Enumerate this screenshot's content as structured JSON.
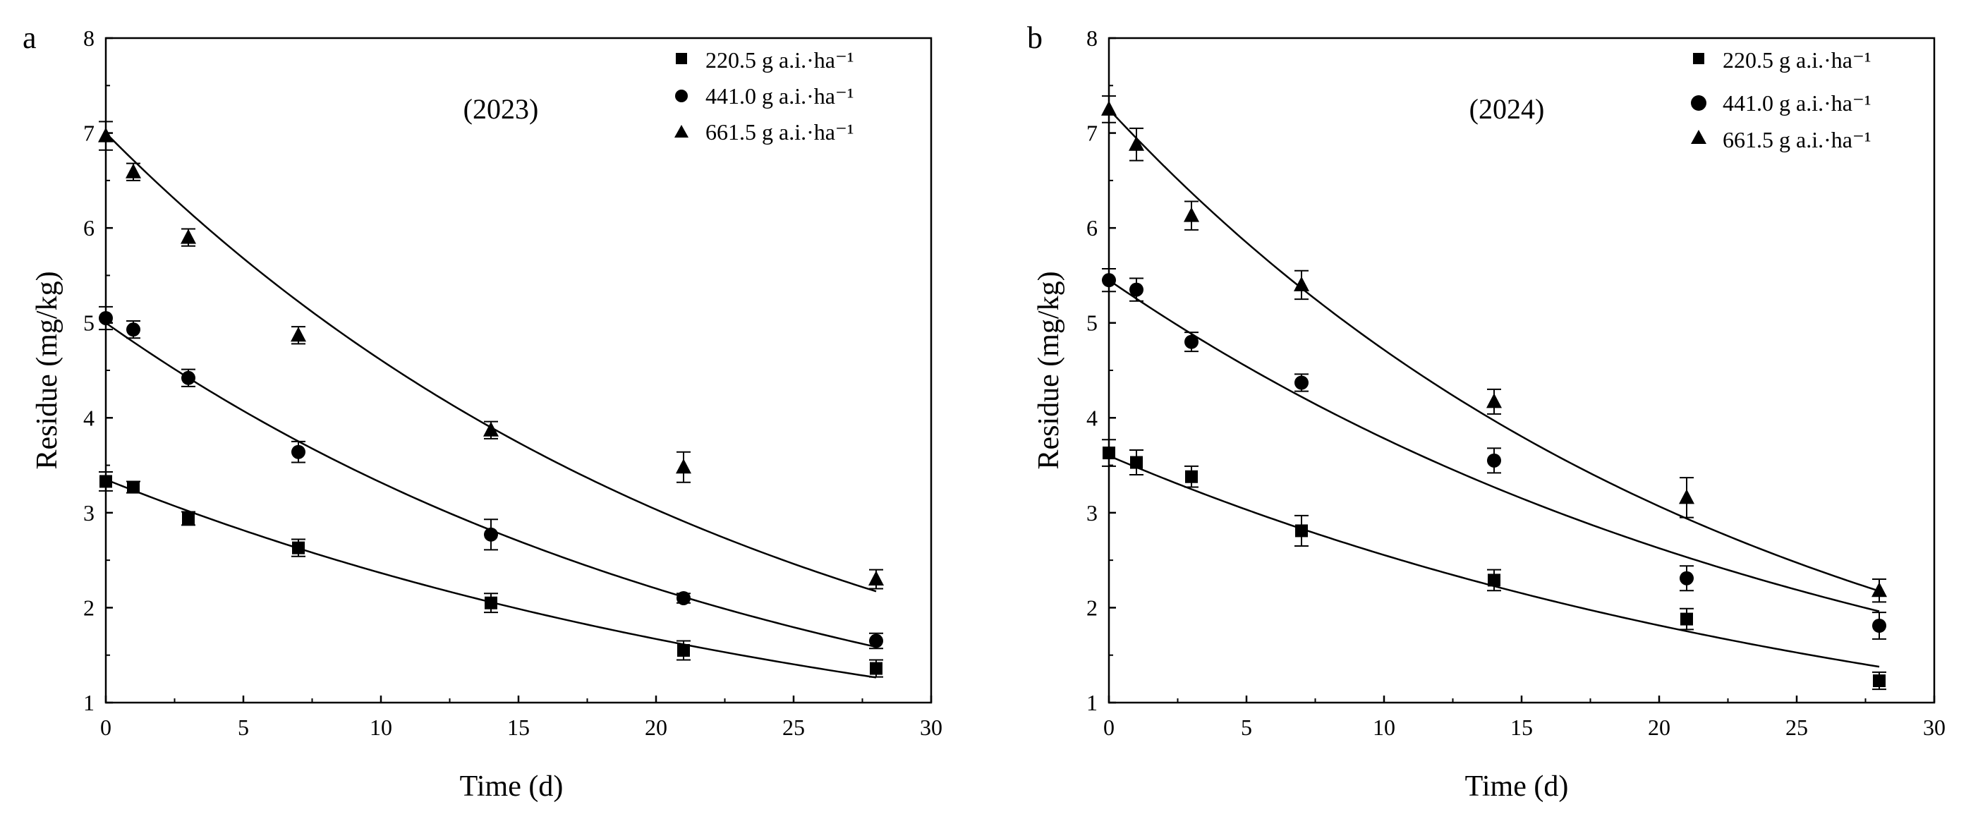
{
  "chart_data": [
    {
      "type": "scatter",
      "panel_label": "a",
      "title": "(2023)",
      "xlabel": "Time (d)",
      "ylabel": "Residue (mg/kg)",
      "xlim": [
        0,
        30
      ],
      "ylim": [
        1,
        8
      ],
      "x_ticks": [
        0,
        5,
        10,
        15,
        20,
        25,
        30
      ],
      "y_ticks": [
        1,
        2,
        3,
        4,
        5,
        6,
        7,
        8
      ],
      "x_tick_labels": [
        "0",
        "5",
        "10",
        "15",
        "20",
        "25",
        "30"
      ],
      "y_tick_labels": [
        "1",
        "2",
        "3",
        "4",
        "5",
        "6",
        "7",
        "8"
      ],
      "legend_position": "top-right",
      "x": [
        0,
        1,
        3,
        7,
        14,
        21,
        28
      ],
      "series": [
        {
          "name": "220.5 g a.i.·ha⁻¹",
          "marker": "square",
          "values": [
            3.33,
            3.27,
            2.94,
            2.63,
            2.05,
            1.55,
            1.36
          ],
          "errors": [
            0.1,
            0.06,
            0.07,
            0.09,
            0.1,
            0.1,
            0.09
          ],
          "fit": {
            "C0": 3.35,
            "k": 0.0348
          }
        },
        {
          "name": "441.0 g a.i.·ha⁻¹",
          "marker": "circle",
          "values": [
            5.05,
            4.93,
            4.42,
            3.64,
            2.77,
            2.1,
            1.65
          ],
          "errors": [
            0.12,
            0.09,
            0.09,
            0.11,
            0.16,
            0.05,
            0.08
          ],
          "fit": {
            "C0": 5.0,
            "k": 0.041
          }
        },
        {
          "name": "661.5 g a.i.·ha⁻¹",
          "marker": "triangle",
          "values": [
            6.97,
            6.59,
            5.9,
            4.87,
            3.87,
            3.48,
            2.3
          ],
          "errors": [
            0.15,
            0.09,
            0.09,
            0.09,
            0.09,
            0.16,
            0.1
          ],
          "fit": {
            "C0": 7.0,
            "k": 0.0418
          }
        }
      ]
    },
    {
      "type": "scatter",
      "panel_label": "b",
      "title": "(2024)",
      "xlabel": "Time (d)",
      "ylabel": "Residue (mg/kg)",
      "xlim": [
        0,
        30
      ],
      "ylim": [
        1,
        8
      ],
      "x_ticks": [
        0,
        5,
        10,
        15,
        20,
        25,
        30
      ],
      "y_ticks": [
        1,
        2,
        3,
        4,
        5,
        6,
        7,
        8
      ],
      "x_tick_labels": [
        "0",
        "5",
        "10",
        "15",
        "20",
        "25",
        "30"
      ],
      "y_tick_labels": [
        "1",
        "2",
        "3",
        "4",
        "5",
        "6",
        "7",
        "8"
      ],
      "legend_position": "top-right",
      "x": [
        0,
        1,
        3,
        7,
        14,
        21,
        28
      ],
      "series": [
        {
          "name": "220.5 g a.i.·ha⁻¹",
          "marker": "square",
          "values": [
            3.63,
            3.53,
            3.38,
            2.81,
            2.29,
            1.88,
            1.23
          ],
          "errors": [
            0.14,
            0.13,
            0.11,
            0.16,
            0.11,
            0.11,
            0.09
          ],
          "fit": {
            "C0": 3.6,
            "k": 0.0343
          }
        },
        {
          "name": "441.0 g a.i.·ha⁻¹",
          "marker": "circle",
          "values": [
            5.45,
            5.35,
            4.8,
            4.37,
            3.55,
            2.31,
            1.81
          ],
          "errors": [
            0.12,
            0.12,
            0.1,
            0.09,
            0.13,
            0.13,
            0.14
          ],
          "fit": {
            "C0": 5.45,
            "k": 0.0365
          }
        },
        {
          "name": "661.5 g a.i.·ha⁻¹",
          "marker": "triangle",
          "values": [
            7.25,
            6.88,
            6.13,
            5.4,
            4.17,
            3.16,
            2.18
          ],
          "errors": [
            0.14,
            0.17,
            0.15,
            0.15,
            0.13,
            0.21,
            0.12
          ],
          "fit": {
            "C0": 7.25,
            "k": 0.043
          }
        }
      ]
    }
  ]
}
